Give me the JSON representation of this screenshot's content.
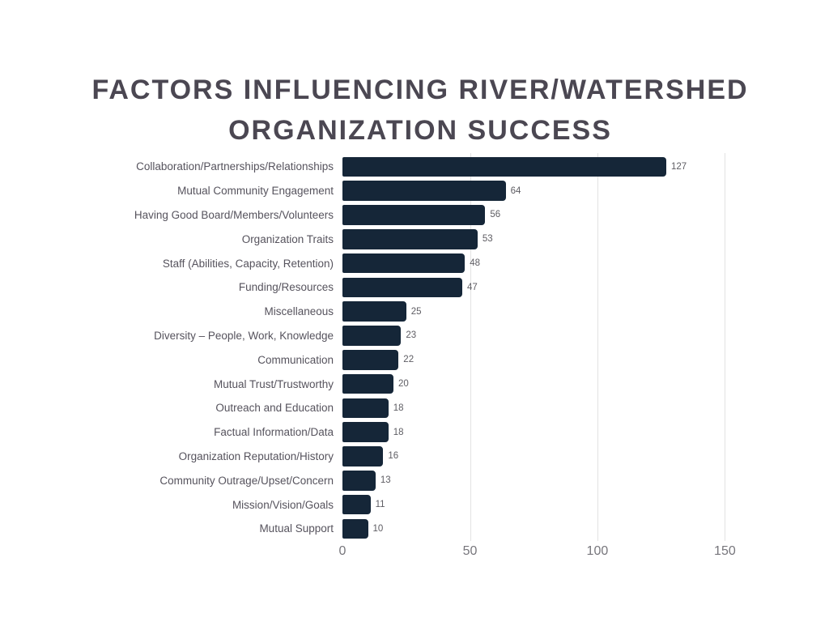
{
  "chart_data": {
    "type": "bar",
    "orientation": "horizontal",
    "title": "FACTORS INFLUENCING RIVER/WATERSHED ORGANIZATION SUCCESS",
    "categories": [
      "Collaboration/Partnerships/Relationships",
      "Mutual Community Engagement",
      "Having Good Board/Members/Volunteers",
      "Organization Traits",
      "Staff (Abilities, Capacity, Retention)",
      "Funding/Resources",
      "Miscellaneous",
      "Diversity – People, Work, Knowledge",
      "Communication",
      "Mutual Trust/Trustworthy",
      "Outreach and Education",
      "Factual Information/Data",
      "Organization Reputation/History",
      "Community Outrage/Upset/Concern",
      "Mission/Vision/Goals",
      "Mutual Support"
    ],
    "values": [
      127,
      64,
      56,
      53,
      48,
      47,
      25,
      23,
      22,
      20,
      18,
      18,
      16,
      13,
      11,
      10
    ],
    "value_labels_shown": true,
    "xlabel": "",
    "ylabel": "",
    "xlim": [
      0,
      150
    ],
    "x_ticks": [
      0,
      50,
      100,
      150
    ],
    "gridlines_at": [
      50,
      100,
      150
    ],
    "grid": true,
    "legend": "none",
    "colors": {
      "background": "#ffffff",
      "bar_fill": "#152638",
      "title_text": "#4b4752",
      "category_label_text": "#56535d",
      "value_label_text": "#5e5d63",
      "tick_label_text": "#77767c",
      "gridline": "#e3e3e3"
    }
  }
}
